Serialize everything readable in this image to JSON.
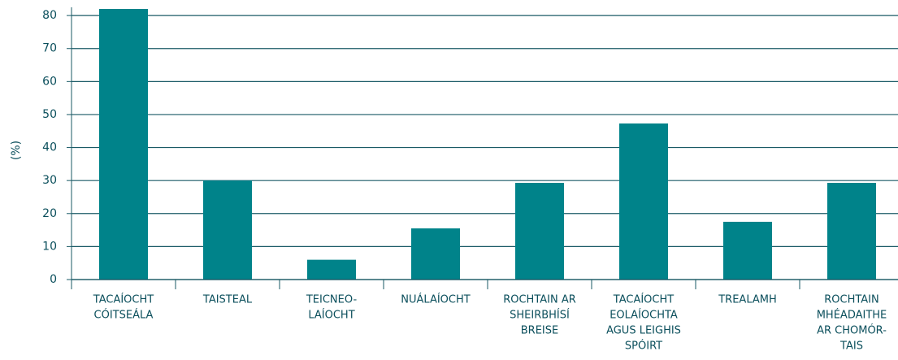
{
  "chart_data": {
    "type": "bar",
    "ylabel": "(%)",
    "categories": [
      [
        "TACAÍOCHT",
        "CÓITSEÁLA"
      ],
      [
        "TAISTEAL"
      ],
      [
        "TEICNEO-",
        "LAÍOCHT"
      ],
      [
        "NUÁLAÍOCHT"
      ],
      [
        "ROCHTAIN AR",
        "SHEIRBHÍSÍ",
        "BREISE"
      ],
      [
        "TACAÍOCHT",
        "EOLAÍOCHTA",
        "AGUS LEIGHIS",
        "SPÓIRT"
      ],
      [
        "TREALAMH"
      ],
      [
        "ROCHTAIN",
        "MHÉADAITHE",
        "AR CHOMÓR-",
        "TAIS"
      ]
    ],
    "values": [
      82,
      30,
      6,
      15.5,
      29.3,
      47.3,
      17.5,
      29.3
    ],
    "color": "#00838a",
    "ylim": [
      0,
      82
    ],
    "yticks": [
      0,
      10,
      20,
      30,
      40,
      50,
      60,
      70,
      80
    ],
    "grid": true
  }
}
